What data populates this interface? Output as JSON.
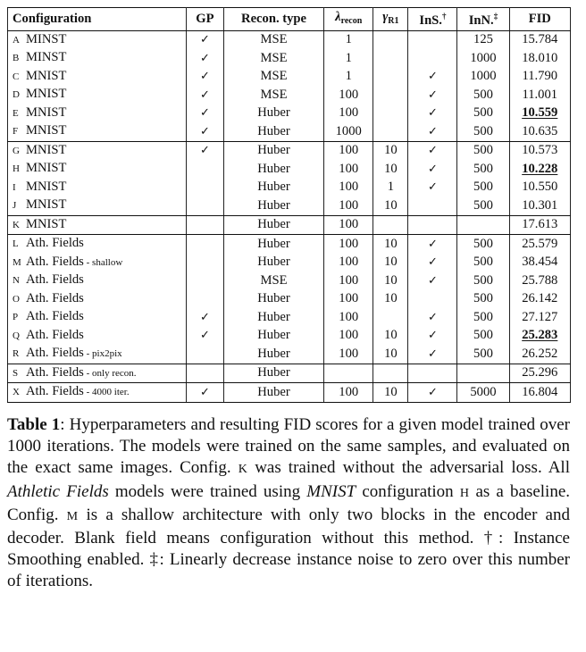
{
  "table": {
    "headers": {
      "configuration": "Configuration",
      "gp": "GP",
      "recon_type": "Recon. type",
      "lambda_symbol": "λ",
      "lambda_sub": "recon",
      "gamma_symbol": "γ",
      "gamma_sub": "R1",
      "ins_label": "InS.",
      "ins_mark": "†",
      "inn_label": "InN.",
      "inn_mark": "‡",
      "fid": "FID"
    },
    "check_glyph": "✓",
    "groups": [
      [
        {
          "letter": "A",
          "name": "MINST",
          "suffix": "",
          "gp": true,
          "recon": "MSE",
          "lambda": "1",
          "gamma": "",
          "ins": false,
          "inn": "125",
          "fid": "15.784",
          "best": false
        },
        {
          "letter": "B",
          "name": "MINST",
          "suffix": "",
          "gp": true,
          "recon": "MSE",
          "lambda": "1",
          "gamma": "",
          "ins": false,
          "inn": "1000",
          "fid": "18.010",
          "best": false
        },
        {
          "letter": "C",
          "name": "MNIST",
          "suffix": "",
          "gp": true,
          "recon": "MSE",
          "lambda": "1",
          "gamma": "",
          "ins": true,
          "inn": "1000",
          "fid": "11.790",
          "best": false
        },
        {
          "letter": "D",
          "name": "MNIST",
          "suffix": "",
          "gp": true,
          "recon": "MSE",
          "lambda": "100",
          "gamma": "",
          "ins": true,
          "inn": "500",
          "fid": "11.001",
          "best": false
        },
        {
          "letter": "E",
          "name": "MNIST",
          "suffix": "",
          "gp": true,
          "recon": "Huber",
          "lambda": "100",
          "gamma": "",
          "ins": true,
          "inn": "500",
          "fid": "10.559",
          "best": true
        },
        {
          "letter": "F",
          "name": "MNIST",
          "suffix": "",
          "gp": true,
          "recon": "Huber",
          "lambda": "1000",
          "gamma": "",
          "ins": true,
          "inn": "500",
          "fid": "10.635",
          "best": false
        }
      ],
      [
        {
          "letter": "G",
          "name": "MNIST",
          "suffix": "",
          "gp": true,
          "recon": "Huber",
          "lambda": "100",
          "gamma": "10",
          "ins": true,
          "inn": "500",
          "fid": "10.573",
          "best": false
        },
        {
          "letter": "H",
          "name": "MNIST",
          "suffix": "",
          "gp": false,
          "recon": "Huber",
          "lambda": "100",
          "gamma": "10",
          "ins": true,
          "inn": "500",
          "fid": "10.228",
          "best": true
        },
        {
          "letter": "I",
          "name": "MNIST",
          "suffix": "",
          "gp": false,
          "recon": "Huber",
          "lambda": "100",
          "gamma": "1",
          "ins": true,
          "inn": "500",
          "fid": "10.550",
          "best": false
        },
        {
          "letter": "J",
          "name": "MNIST",
          "suffix": "",
          "gp": false,
          "recon": "Huber",
          "lambda": "100",
          "gamma": "10",
          "ins": false,
          "inn": "500",
          "fid": "10.301",
          "best": false
        }
      ],
      [
        {
          "letter": "K",
          "name": "MNIST",
          "suffix": "",
          "gp": false,
          "recon": "Huber",
          "lambda": "100",
          "gamma": "",
          "ins": false,
          "inn": "",
          "fid": "17.613",
          "best": false
        }
      ],
      [
        {
          "letter": "L",
          "name": "Ath. Fields",
          "suffix": "",
          "gp": false,
          "recon": "Huber",
          "lambda": "100",
          "gamma": "10",
          "ins": true,
          "inn": "500",
          "fid": "25.579",
          "best": false
        },
        {
          "letter": "M",
          "name": "Ath. Fields",
          "suffix": " - shallow",
          "gp": false,
          "recon": "Huber",
          "lambda": "100",
          "gamma": "10",
          "ins": true,
          "inn": "500",
          "fid": "38.454",
          "best": false
        },
        {
          "letter": "N",
          "name": "Ath. Fields",
          "suffix": "",
          "gp": false,
          "recon": "MSE",
          "lambda": "100",
          "gamma": "10",
          "ins": true,
          "inn": "500",
          "fid": "25.788",
          "best": false
        },
        {
          "letter": "O",
          "name": "Ath. Fields",
          "suffix": "",
          "gp": false,
          "recon": "Huber",
          "lambda": "100",
          "gamma": "10",
          "ins": false,
          "inn": "500",
          "fid": "26.142",
          "best": false
        },
        {
          "letter": "P",
          "name": "Ath. Fields",
          "suffix": "",
          "gp": true,
          "recon": "Huber",
          "lambda": "100",
          "gamma": "",
          "ins": true,
          "inn": "500",
          "fid": "27.127",
          "best": false
        },
        {
          "letter": "Q",
          "name": "Ath. Fields",
          "suffix": "",
          "gp": true,
          "recon": "Huber",
          "lambda": "100",
          "gamma": "10",
          "ins": true,
          "inn": "500",
          "fid": "25.283",
          "best": true
        },
        {
          "letter": "R",
          "name": "Ath. Fields",
          "suffix": " - pix2pix",
          "gp": false,
          "recon": "Huber",
          "lambda": "100",
          "gamma": "10",
          "ins": true,
          "inn": "500",
          "fid": "26.252",
          "best": false
        }
      ],
      [
        {
          "letter": "S",
          "name": "Ath. Fields",
          "suffix": " - only recon.",
          "gp": false,
          "recon": "Huber",
          "lambda": "",
          "gamma": "",
          "ins": false,
          "inn": "",
          "fid": "25.296",
          "best": false
        }
      ],
      [
        {
          "letter": "X",
          "name": "Ath. Fields",
          "suffix": " - 4000 iter.",
          "gp": true,
          "recon": "Huber",
          "lambda": "100",
          "gamma": "10",
          "ins": true,
          "inn": "5000",
          "fid": "16.804",
          "best": false
        }
      ]
    ]
  },
  "caption": {
    "label": "Table 1",
    "t1": ":  Hyperparameters and resulting FID scores for a given model trained over 1000 iterations.  The models were trained on the same samples, and evaluated on the exact same images. Config. ",
    "c1": "K",
    "t2": " was trained without the adversarial loss. All ",
    "i1": "Athletic Fields",
    "t3": " models were trained using ",
    "i2": "MNIST",
    "t4": " configuration ",
    "c2": "H",
    "t5": " as a baseline. Config. ",
    "c3": "M",
    "t6": " is a shallow architecture with only two blocks in the encoder and decoder.  Blank field means configuration without this method.  †: Instance Smoothing enabled. ‡: Linearly decrease instance noise to zero over this number of iterations."
  }
}
